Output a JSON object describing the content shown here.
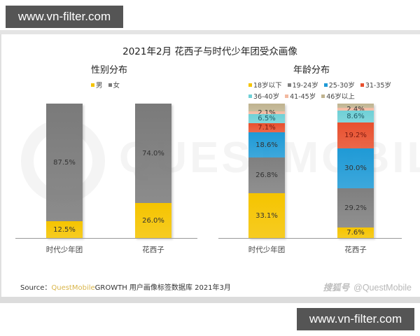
{
  "watermarks": {
    "top": "www.vn-filter.com",
    "bottom": "www.vn-filter.com"
  },
  "background_watermark": "QUESTMOBILE",
  "chart_data": [
    {
      "type": "bar",
      "stacked": true,
      "title": "2021年2月 花西子与时代少年团受众画像",
      "subtitle": "性别分布",
      "categories": [
        "时代少年团",
        "花西子"
      ],
      "legend": [
        "男",
        "女"
      ],
      "legend_position": "top",
      "series": [
        {
          "name": "男",
          "color": "#f5c400",
          "values": [
            12.5,
            26.0
          ],
          "labels": [
            "12.5%",
            "26.0%"
          ]
        },
        {
          "name": "女",
          "color": "#7a7a7a",
          "values": [
            87.5,
            74.0
          ],
          "labels": [
            "87.5%",
            "74.0%"
          ]
        }
      ],
      "xlabel": "",
      "ylabel": "",
      "ylim": [
        0,
        100
      ],
      "grid": false
    },
    {
      "type": "bar",
      "stacked": true,
      "subtitle": "年龄分布",
      "categories": [
        "时代少年团",
        "花西子"
      ],
      "legend": [
        "18岁以下",
        "19-24岁",
        "25-30岁",
        "31-35岁",
        "36-40岁",
        "41-45岁",
        "46岁以上"
      ],
      "legend_position": "top",
      "series": [
        {
          "name": "18岁以下",
          "color": "#f5c400",
          "values": [
            33.1,
            7.6
          ],
          "labels": [
            "33.1%",
            "7.6%"
          ]
        },
        {
          "name": "19-24岁",
          "color": "#7f7f7f",
          "values": [
            26.8,
            29.2
          ],
          "labels": [
            "26.8%",
            "29.2%"
          ]
        },
        {
          "name": "25-30岁",
          "color": "#1f9ad6",
          "values": [
            18.6,
            30.0
          ],
          "labels": [
            "18.6%",
            "30.0%"
          ]
        },
        {
          "name": "31-35岁",
          "color": "#e8502e",
          "values": [
            7.1,
            19.2
          ],
          "labels": [
            "7.1%",
            "19.2%"
          ]
        },
        {
          "name": "36-40岁",
          "color": "#6fd0d6",
          "values": [
            6.5,
            8.6
          ],
          "labels": [
            "6.5%",
            "8.6%"
          ]
        },
        {
          "name": "41-45岁",
          "color": "#f3b9a0",
          "values": [
            2.1,
            2.4
          ],
          "labels": [
            "2.1%",
            "2.4%"
          ]
        },
        {
          "name": "46岁以上",
          "color": "#bfb38f",
          "values": [
            5.8,
            3.0
          ],
          "labels": [
            "",
            ""
          ]
        }
      ],
      "xlabel": "",
      "ylabel": "",
      "ylim": [
        0,
        100
      ],
      "grid": false
    }
  ],
  "source": {
    "prefix": "Source：",
    "brand": "QuestMobile",
    "text": "GROWTH 用户画像标签数据库 2021年3月"
  },
  "credit": {
    "sohu": "搜狐号",
    "questmobile": "@QuestMobile"
  }
}
